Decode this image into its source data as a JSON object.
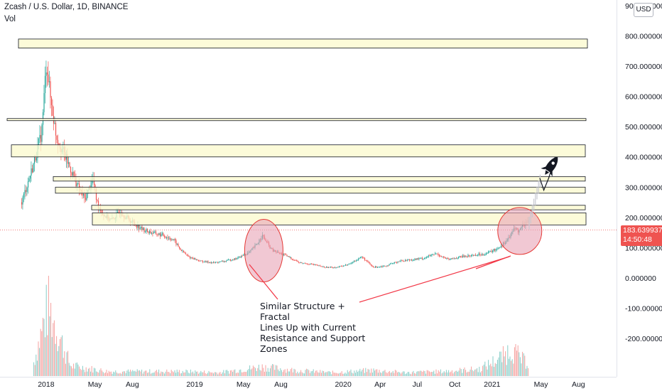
{
  "header": {
    "symbol_line": "Zcash / U.S. Dollar, 1D, BINANCE",
    "indicator": "Vol"
  },
  "currency_button": "USD",
  "price_tag": {
    "price": "183.639937",
    "countdown": "14:50:48"
  },
  "annotation": {
    "lines": [
      "Similar Structure + Fractal",
      "Lines Up with Current",
      "Resistance and Support",
      "Zones"
    ]
  },
  "colors": {
    "up": "#26a69a",
    "down": "#ef5350",
    "zone_fill": "#fbfad0",
    "zone_border": "#131722",
    "circle_fill": "#e8a3b5",
    "circle_border": "#e53935",
    "trendline": "#f23645",
    "price_tag": "#ef5350"
  },
  "chart_data": {
    "type": "candlestick",
    "title": "Zcash / U.S. Dollar, 1D, BINANCE",
    "y_axis_ticks": [
      "900.000000",
      "800.000000",
      "700.000000",
      "600.000000",
      "500.000000",
      "400.000000",
      "300.000000",
      "200.000000",
      "100.000000",
      "0.000000",
      "-100.000000",
      "-200.000000"
    ],
    "x_axis_ticks": [
      "2018",
      "May",
      "Aug",
      "2019",
      "May",
      "Aug",
      "2020",
      "Apr",
      "Jul",
      "Oct",
      "2021",
      "May",
      "Aug"
    ],
    "ylim": [
      -245,
      905
    ],
    "price_series": {
      "dates": [
        "2017-11-01",
        "2017-12-01",
        "2017-12-20",
        "2018-01-01",
        "2018-01-10",
        "2018-01-25",
        "2018-02-10",
        "2018-03-01",
        "2018-03-20",
        "2018-04-05",
        "2018-04-25",
        "2018-05-05",
        "2018-05-20",
        "2018-06-10",
        "2018-07-01",
        "2018-07-20",
        "2018-08-05",
        "2018-08-25",
        "2018-09-15",
        "2018-10-15",
        "2018-11-10",
        "2018-11-25",
        "2018-12-15",
        "2019-01-15",
        "2019-02-15",
        "2019-03-15",
        "2019-04-15",
        "2019-05-15",
        "2019-06-01",
        "2019-06-15",
        "2019-06-25",
        "2019-07-10",
        "2019-08-10",
        "2019-09-15",
        "2019-10-15",
        "2019-11-15",
        "2019-12-15",
        "2020-01-15",
        "2020-02-15",
        "2020-03-13",
        "2020-04-15",
        "2020-05-15",
        "2020-06-15",
        "2020-07-15",
        "2020-08-15",
        "2020-09-15",
        "2020-10-15",
        "2020-11-15",
        "2020-12-15",
        "2021-01-10",
        "2021-01-25",
        "2021-02-05",
        "2021-02-15",
        "2021-02-25",
        "2021-03-05",
        "2021-03-15",
        "2021-03-25",
        "2021-04-01"
      ],
      "close": [
        250,
        380,
        480,
        720,
        600,
        470,
        420,
        360,
        300,
        260,
        330,
        250,
        210,
        190,
        220,
        195,
        180,
        160,
        150,
        140,
        125,
        95,
        70,
        55,
        50,
        55,
        65,
        85,
        110,
        140,
        120,
        90,
        75,
        50,
        45,
        35,
        35,
        45,
        70,
        35,
        40,
        55,
        60,
        65,
        80,
        60,
        70,
        75,
        80,
        95,
        110,
        125,
        140,
        170,
        150,
        175,
        185,
        190
      ]
    },
    "projection": {
      "description": "projected rise",
      "dates": [
        "2021-04-01",
        "2021-04-20",
        "2021-04-28",
        "2021-05-08",
        "2021-05-20",
        "2021-06-05"
      ],
      "values": [
        190,
        250,
        330,
        290,
        330,
        400
      ]
    },
    "zones": [
      {
        "from": 760,
        "to": 790
      },
      {
        "from": 520,
        "to": 527
      },
      {
        "from": 400,
        "to": 440
      },
      {
        "from": 320,
        "to": 335
      },
      {
        "from": 280,
        "to": 300
      },
      {
        "from": 225,
        "to": 240
      },
      {
        "from": 175,
        "to": 215
      }
    ],
    "highlights": [
      {
        "center_date": "2019-06-20",
        "center_value": 90
      },
      {
        "center_date": "2021-03-10",
        "center_value": 155
      }
    ],
    "volume_series": {
      "scale_max": 300,
      "dates": [
        "2017-12-01",
        "2018-01-05",
        "2018-03-01",
        "2018-06-01",
        "2018-09-01",
        "2018-12-01",
        "2019-03-01",
        "2019-06-15",
        "2019-09-01",
        "2019-12-01",
        "2020-03-13",
        "2020-06-01",
        "2020-09-01",
        "2020-12-01",
        "2021-02-01",
        "2021-02-15",
        "2021-03-15",
        "2021-04-01"
      ],
      "values": [
        60,
        300,
        45,
        20,
        20,
        20,
        15,
        40,
        25,
        15,
        25,
        15,
        20,
        30,
        90,
        120,
        70,
        55
      ]
    }
  }
}
